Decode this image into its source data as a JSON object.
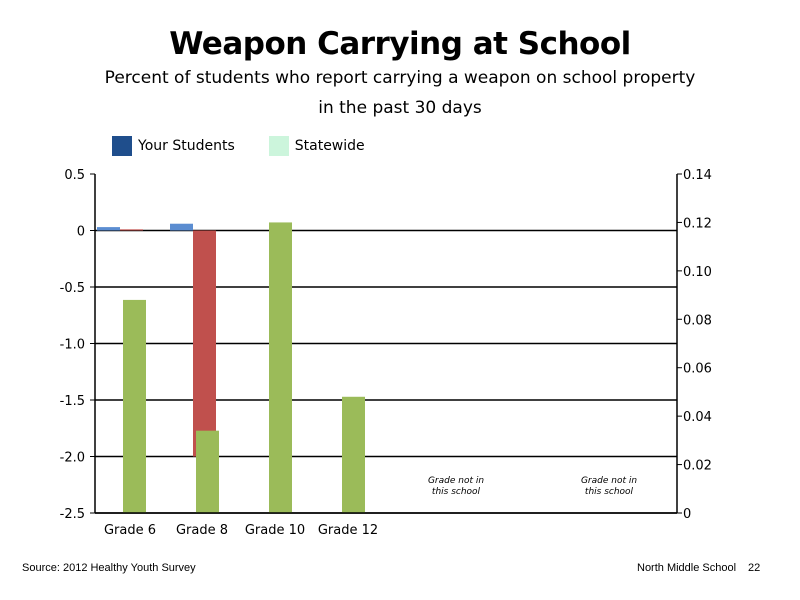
{
  "title": "Weapon Carrying at School",
  "subtitle_line1": "Percent of students who report carrying a weapon on school property",
  "subtitle_line2": "in the past 30 days",
  "legend": [
    {
      "label": "Your Students",
      "color": "#1f4e8c"
    },
    {
      "label": "Statewide",
      "color": "#ccf5dc"
    }
  ],
  "footer": {
    "source": "Source: 2012 Healthy Youth Survey",
    "school": "North Middle  School",
    "page_number": "22"
  },
  "notes": [
    "Grade not in this school",
    "Grade not in this school"
  ],
  "chart_data": {
    "type": "bar",
    "categories": [
      "Grade 6",
      "Grade 8",
      "Grade 10",
      "Grade 12"
    ],
    "left_axis": {
      "ticks": [
        "0.5",
        "0",
        "-0.5",
        "-1.0",
        "-1.5",
        "-2.0",
        "-2.5"
      ],
      "ylim": [
        -2.5,
        0.5
      ]
    },
    "right_axis": {
      "ticks": [
        "0.14",
        "0.12",
        "0.10",
        "0.08",
        "0.06",
        "0.04",
        "0.02",
        "0"
      ],
      "ylim": [
        0,
        0.14
      ]
    },
    "series": [
      {
        "axis": "left",
        "color": "#5b8dd1",
        "values": [
          0.03,
          0.06,
          null,
          null
        ]
      },
      {
        "axis": "left",
        "color": "#c0504d",
        "values": [
          0.01,
          -2.0,
          null,
          null
        ]
      },
      {
        "axis": "right",
        "color": "#9bbb59",
        "values": [
          0.088,
          0.034,
          0.12,
          0.048
        ]
      }
    ],
    "grid": true
  }
}
